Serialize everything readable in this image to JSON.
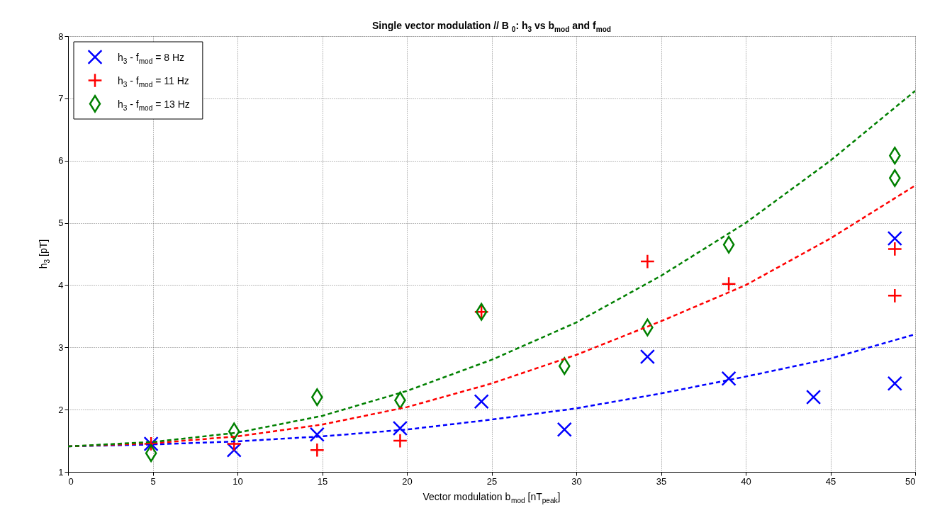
{
  "chart_data": {
    "type": "scatter",
    "title": "Single  vector modulation // B$_{0}$: h$_{3}$ vs b$_{mod}$ and f$_{mod}$",
    "xlabel": "Vector modulation b$_{mod}$ [nT$_{peak}$]",
    "ylabel": "h$_{3}$ [pT]",
    "xlim": [
      0,
      50
    ],
    "xticks": [
      0,
      5,
      10,
      15,
      20,
      25,
      30,
      35,
      40,
      45,
      50
    ],
    "ylim": [
      1,
      8
    ],
    "yticks": [
      1,
      2,
      3,
      4,
      5,
      6,
      7,
      8
    ],
    "grid": true,
    "legend": "top left",
    "series": [
      {
        "name": "h$_{3}$ - f$_{mod}$ = 8 Hz",
        "marker": "x",
        "color": "#0000ff",
        "x": [
          4.9,
          9.8,
          14.7,
          19.6,
          24.4,
          29.3,
          34.2,
          39.0,
          44.0,
          48.8,
          48.8
        ],
        "values": [
          1.45,
          1.35,
          1.6,
          1.7,
          2.13,
          1.68,
          2.85,
          2.5,
          2.2,
          2.42,
          4.75
        ]
      },
      {
        "name": "h$_{3}$ - f$_{mod}$ = 11 Hz",
        "marker": "cross",
        "color": "#ff0000",
        "x": [
          4.9,
          9.8,
          14.7,
          19.6,
          24.4,
          34.2,
          39.0,
          48.8,
          48.8
        ],
        "values": [
          1.45,
          1.45,
          1.35,
          1.5,
          3.57,
          4.38,
          4.02,
          4.58,
          3.83
        ]
      },
      {
        "name": "h$_{3}$ - f$_{mod}$ = 13 Hz",
        "marker": "diamond",
        "color": "#008000",
        "x": [
          4.9,
          9.8,
          14.7,
          19.6,
          24.4,
          29.3,
          34.2,
          39.0,
          48.8,
          48.8
        ],
        "values": [
          1.3,
          1.65,
          2.2,
          2.15,
          3.57,
          2.7,
          3.32,
          4.65,
          6.08,
          5.72
        ]
      },
      {
        "type": "line",
        "line_style": "dashed",
        "color": "#0000ff",
        "x": [
          0,
          5,
          10,
          15,
          20,
          25,
          30,
          35,
          40,
          45,
          50
        ],
        "values": [
          1.41,
          1.44,
          1.49,
          1.57,
          1.68,
          1.84,
          2.02,
          2.26,
          2.53,
          2.82,
          3.21
        ]
      },
      {
        "type": "line",
        "line_style": "dashed",
        "color": "#ff0000",
        "x": [
          0,
          5,
          10,
          15,
          20,
          25,
          30,
          35,
          40,
          45,
          50
        ],
        "values": [
          1.41,
          1.46,
          1.57,
          1.76,
          2.04,
          2.42,
          2.88,
          3.42,
          4.0,
          4.75,
          5.6
        ]
      },
      {
        "type": "line",
        "line_style": "dashed",
        "color": "#008000",
        "x": [
          0,
          5,
          10,
          15,
          20,
          25,
          30,
          35,
          40,
          45,
          50
        ],
        "values": [
          1.41,
          1.48,
          1.63,
          1.9,
          2.3,
          2.8,
          3.4,
          4.15,
          5.0,
          6.0,
          7.12
        ]
      }
    ]
  }
}
